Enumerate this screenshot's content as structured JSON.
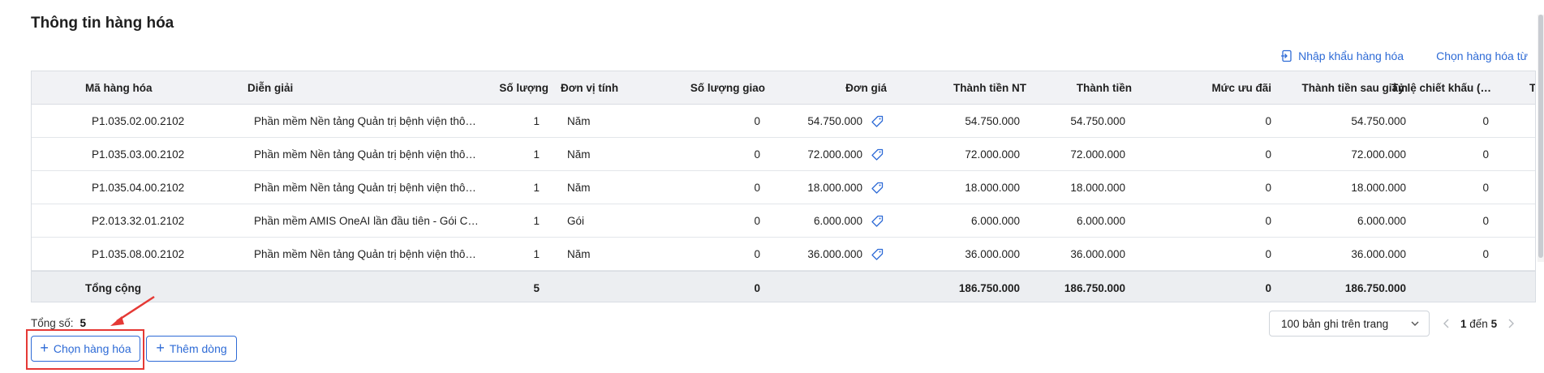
{
  "section_title": "Thông tin hàng hóa",
  "actions": {
    "import_label": "Nhập khẩu hàng hóa",
    "choose_from_label": "Chọn hàng hóa từ"
  },
  "table": {
    "headers": {
      "code": "Mã hàng hóa",
      "desc": "Diễn giải",
      "qty": "Số lượng",
      "unit": "Đơn vị tính",
      "delivered": "Số lượng giao",
      "price": "Đơn giá",
      "amount_nt": "Thành tiền NT",
      "amount": "Thành tiền",
      "discount_level": "Mức ưu đãi",
      "after_discount": "Thành tiền sau giảm",
      "discount_rate": "Tỷ lệ chiết khấu (…",
      "next": "T"
    },
    "rows": [
      {
        "code": "P1.035.02.00.2102",
        "desc": "Phần mềm Nền tảng Quản trị bệnh viện thô…",
        "qty": "1",
        "unit": "Năm",
        "delivered": "0",
        "price": "54.750.000",
        "amount_nt": "54.750.000",
        "amount": "54.750.000",
        "discount_level": "0",
        "after_discount": "54.750.000",
        "discount_rate": "0"
      },
      {
        "code": "P1.035.03.00.2102",
        "desc": "Phần mềm Nền tảng Quản trị bệnh viện thô…",
        "qty": "1",
        "unit": "Năm",
        "delivered": "0",
        "price": "72.000.000",
        "amount_nt": "72.000.000",
        "amount": "72.000.000",
        "discount_level": "0",
        "after_discount": "72.000.000",
        "discount_rate": "0"
      },
      {
        "code": "P1.035.04.00.2102",
        "desc": "Phần mềm Nền tảng Quản trị bệnh viện thô…",
        "qty": "1",
        "unit": "Năm",
        "delivered": "0",
        "price": "18.000.000",
        "amount_nt": "18.000.000",
        "amount": "18.000.000",
        "discount_level": "0",
        "after_discount": "18.000.000",
        "discount_rate": "0"
      },
      {
        "code": "P2.013.32.01.2102",
        "desc": "Phần mềm AMIS OneAI lần đầu tiên - Gói C…",
        "qty": "1",
        "unit": "Gói",
        "delivered": "0",
        "price": "6.000.000",
        "amount_nt": "6.000.000",
        "amount": "6.000.000",
        "discount_level": "0",
        "after_discount": "6.000.000",
        "discount_rate": "0"
      },
      {
        "code": "P1.035.08.00.2102",
        "desc": "Phần mềm Nền tảng Quản trị bệnh viện thô…",
        "qty": "1",
        "unit": "Năm",
        "delivered": "0",
        "price": "36.000.000",
        "amount_nt": "36.000.000",
        "amount": "36.000.000",
        "discount_level": "0",
        "after_discount": "36.000.000",
        "discount_rate": "0"
      }
    ],
    "footer": {
      "label": "Tổng cộng",
      "qty": "5",
      "delivered": "0",
      "amount_nt": "186.750.000",
      "amount": "186.750.000",
      "discount_level": "0",
      "after_discount": "186.750.000"
    }
  },
  "summary": {
    "label": "Tổng số:",
    "value": "5"
  },
  "buttons": {
    "choose_goods": "Chọn hàng hóa",
    "add_row": "Thêm dòng"
  },
  "pagination": {
    "page_size": "100 bản ghi trên trang",
    "range_from": "1",
    "range_sep": "đến",
    "range_to": "5"
  },
  "colors": {
    "accent": "#2e6bd6",
    "highlight": "#e53935",
    "header_bg": "#f1f2f5"
  },
  "icons": [
    "import-icon",
    "tag-icon",
    "plus-icon",
    "chevron-down-icon",
    "chevron-left-icon",
    "chevron-right-icon"
  ]
}
